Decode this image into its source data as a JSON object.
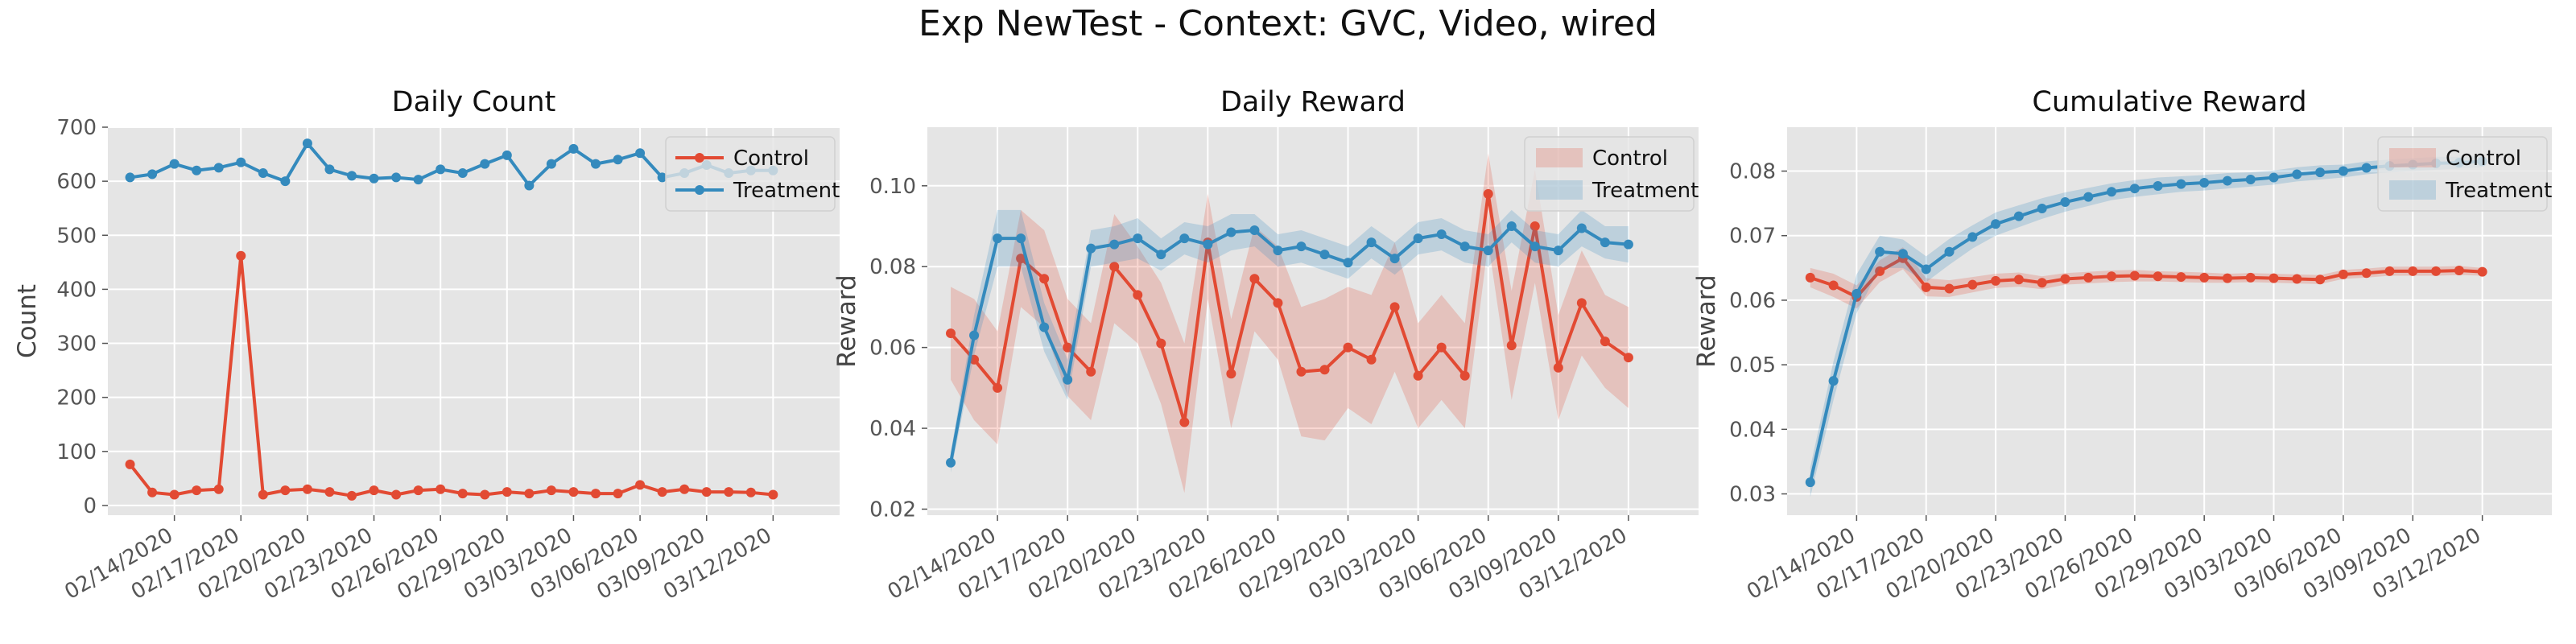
{
  "suptitle": "Exp NewTest - Context: GVC, Video, wired",
  "colors": {
    "control": "#E24A33",
    "treatment": "#348ABD",
    "panel_bg": "#E5E5E5",
    "grid": "#FFFFFF"
  },
  "chart_data": [
    {
      "type": "line",
      "title": "Daily Count",
      "ylabel": "Count",
      "ylim": [
        -18,
        700
      ],
      "yticks": [
        0,
        100,
        200,
        300,
        400,
        500,
        600,
        700
      ],
      "xlim": [
        "02/11/2020",
        "03/15/2020"
      ],
      "xticks": [
        "02/14/2020",
        "02/17/2020",
        "02/20/2020",
        "02/23/2020",
        "02/26/2020",
        "02/29/2020",
        "03/03/2020",
        "03/06/2020",
        "03/09/2020",
        "03/12/2020"
      ],
      "legend": {
        "position": "top-right",
        "style": "line"
      },
      "x_start": "02/12/2020",
      "series": [
        {
          "name": "Control",
          "color": "#E24A33",
          "values": [
            76,
            24,
            20,
            28,
            30,
            462,
            20,
            28,
            30,
            25,
            18,
            28,
            20,
            28,
            30,
            22,
            20,
            25,
            22,
            28,
            25,
            22,
            22,
            38,
            25,
            30,
            25,
            25,
            24,
            20
          ]
        },
        {
          "name": "Treatment",
          "color": "#348ABD",
          "values": [
            607,
            613,
            632,
            620,
            625,
            635,
            615,
            600,
            670,
            622,
            610,
            605,
            607,
            603,
            622,
            615,
            632,
            648,
            592,
            632,
            660,
            632,
            640,
            652,
            607,
            615,
            630,
            615,
            620,
            620
          ]
        }
      ]
    },
    {
      "type": "line",
      "title": "Daily Reward",
      "ylabel": "Reward",
      "ylim": [
        0.0185,
        0.1145
      ],
      "yticks": [
        "0.02",
        "0.04",
        "0.06",
        "0.08",
        "0.10"
      ],
      "xlim": [
        "02/11/2020",
        "03/15/2020"
      ],
      "xticks": [
        "02/14/2020",
        "02/17/2020",
        "02/20/2020",
        "02/23/2020",
        "02/26/2020",
        "02/29/2020",
        "03/03/2020",
        "03/06/2020",
        "03/09/2020",
        "03/12/2020"
      ],
      "legend": {
        "position": "top-right",
        "style": "band"
      },
      "x_start": "02/12/2020",
      "series": [
        {
          "name": "Control",
          "color": "#E24A33",
          "values": [
            0.0635,
            0.057,
            0.05,
            0.082,
            0.077,
            0.06,
            0.054,
            0.08,
            0.073,
            0.061,
            0.0415,
            0.086,
            0.0535,
            0.077,
            0.071,
            0.054,
            0.0545,
            0.06,
            0.057,
            0.07,
            0.053,
            0.06,
            0.053,
            0.098,
            0.0605,
            0.09,
            0.055,
            0.071,
            0.0615,
            0.0575
          ],
          "lower": [
            0.052,
            0.042,
            0.036,
            0.07,
            0.065,
            0.048,
            0.042,
            0.066,
            0.061,
            0.046,
            0.024,
            0.072,
            0.04,
            0.064,
            0.057,
            0.038,
            0.037,
            0.045,
            0.041,
            0.054,
            0.04,
            0.047,
            0.04,
            0.086,
            0.047,
            0.076,
            0.042,
            0.058,
            0.05,
            0.045
          ],
          "upper": [
            0.075,
            0.072,
            0.064,
            0.094,
            0.089,
            0.072,
            0.066,
            0.093,
            0.085,
            0.076,
            0.061,
            0.098,
            0.067,
            0.09,
            0.085,
            0.07,
            0.072,
            0.075,
            0.073,
            0.086,
            0.066,
            0.073,
            0.066,
            0.108,
            0.074,
            0.104,
            0.068,
            0.084,
            0.073,
            0.07
          ]
        },
        {
          "name": "Treatment",
          "color": "#348ABD",
          "values": [
            0.0315,
            0.063,
            0.087,
            0.087,
            0.065,
            0.052,
            0.0845,
            0.0855,
            0.087,
            0.083,
            0.087,
            0.0855,
            0.0885,
            0.089,
            0.084,
            0.085,
            0.083,
            0.081,
            0.086,
            0.082,
            0.087,
            0.088,
            0.085,
            0.084,
            0.09,
            0.085,
            0.084,
            0.0895,
            0.086,
            0.0855
          ],
          "lower": [
            0.029,
            0.058,
            0.08,
            0.08,
            0.059,
            0.047,
            0.08,
            0.081,
            0.082,
            0.079,
            0.083,
            0.081,
            0.084,
            0.085,
            0.08,
            0.081,
            0.079,
            0.077,
            0.082,
            0.078,
            0.083,
            0.084,
            0.081,
            0.08,
            0.086,
            0.081,
            0.08,
            0.085,
            0.082,
            0.081
          ],
          "upper": [
            0.034,
            0.068,
            0.094,
            0.094,
            0.071,
            0.057,
            0.089,
            0.09,
            0.092,
            0.087,
            0.091,
            0.09,
            0.093,
            0.093,
            0.088,
            0.089,
            0.087,
            0.085,
            0.09,
            0.086,
            0.091,
            0.092,
            0.089,
            0.088,
            0.094,
            0.089,
            0.088,
            0.094,
            0.09,
            0.09
          ]
        }
      ]
    },
    {
      "type": "line",
      "title": "Cumulative Reward",
      "ylabel": "Reward",
      "ylim": [
        0.0267,
        0.0868
      ],
      "yticks": [
        "0.03",
        "0.04",
        "0.05",
        "0.06",
        "0.07",
        "0.08"
      ],
      "xlim": [
        "02/11/2020",
        "03/15/2020"
      ],
      "xticks": [
        "02/14/2020",
        "02/17/2020",
        "02/20/2020",
        "02/23/2020",
        "02/26/2020",
        "02/29/2020",
        "03/03/2020",
        "03/06/2020",
        "03/09/2020",
        "03/12/2020"
      ],
      "legend": {
        "position": "top-right",
        "style": "band"
      },
      "x_start": "02/12/2020",
      "series": [
        {
          "name": "Control",
          "color": "#E24A33",
          "values": [
            0.0635,
            0.0623,
            0.0605,
            0.0645,
            0.0665,
            0.062,
            0.0618,
            0.0624,
            0.063,
            0.0632,
            0.0627,
            0.0633,
            0.0635,
            0.0637,
            0.0638,
            0.0637,
            0.0636,
            0.0635,
            0.0634,
            0.0635,
            0.0634,
            0.0633,
            0.0632,
            0.064,
            0.0642,
            0.0645,
            0.0645,
            0.0645,
            0.0646,
            0.0644
          ],
          "lower": [
            0.062,
            0.0605,
            0.0587,
            0.0628,
            0.0648,
            0.0606,
            0.0605,
            0.0612,
            0.0619,
            0.0621,
            0.0617,
            0.0624,
            0.0626,
            0.0628,
            0.0629,
            0.0629,
            0.0628,
            0.0627,
            0.0627,
            0.0628,
            0.0627,
            0.0626,
            0.0625,
            0.0633,
            0.0635,
            0.0638,
            0.0638,
            0.0638,
            0.0639,
            0.0638
          ],
          "upper": [
            0.065,
            0.0641,
            0.0623,
            0.0662,
            0.0682,
            0.0634,
            0.0631,
            0.0636,
            0.0641,
            0.0643,
            0.0637,
            0.0642,
            0.0644,
            0.0646,
            0.0647,
            0.0645,
            0.0644,
            0.0643,
            0.0641,
            0.0642,
            0.0641,
            0.064,
            0.0639,
            0.0647,
            0.0649,
            0.0652,
            0.0652,
            0.0652,
            0.0653,
            0.065
          ]
        },
        {
          "name": "Treatment",
          "color": "#348ABD",
          "values": [
            0.0318,
            0.0475,
            0.061,
            0.0675,
            0.0672,
            0.0648,
            0.0675,
            0.0698,
            0.0718,
            0.073,
            0.0742,
            0.0752,
            0.076,
            0.0768,
            0.0773,
            0.0777,
            0.078,
            0.0782,
            0.0785,
            0.0787,
            0.079,
            0.0795,
            0.0798,
            0.08,
            0.0805,
            0.0808,
            0.081,
            0.0812,
            0.0813,
            0.0815
          ],
          "lower": [
            0.0295,
            0.0445,
            0.058,
            0.065,
            0.065,
            0.0628,
            0.0655,
            0.068,
            0.07,
            0.0713,
            0.0726,
            0.0737,
            0.0746,
            0.0755,
            0.076,
            0.0764,
            0.0768,
            0.077,
            0.0773,
            0.0776,
            0.0779,
            0.0784,
            0.0787,
            0.079,
            0.0795,
            0.0798,
            0.08,
            0.0802,
            0.0804,
            0.0806
          ],
          "upper": [
            0.0341,
            0.0505,
            0.064,
            0.07,
            0.0694,
            0.0668,
            0.0695,
            0.0716,
            0.0736,
            0.0747,
            0.0758,
            0.0767,
            0.0774,
            0.0781,
            0.0786,
            0.079,
            0.0792,
            0.0794,
            0.0797,
            0.0798,
            0.0801,
            0.0806,
            0.0809,
            0.081,
            0.0815,
            0.0818,
            0.082,
            0.0822,
            0.0822,
            0.0824
          ]
        }
      ]
    }
  ]
}
